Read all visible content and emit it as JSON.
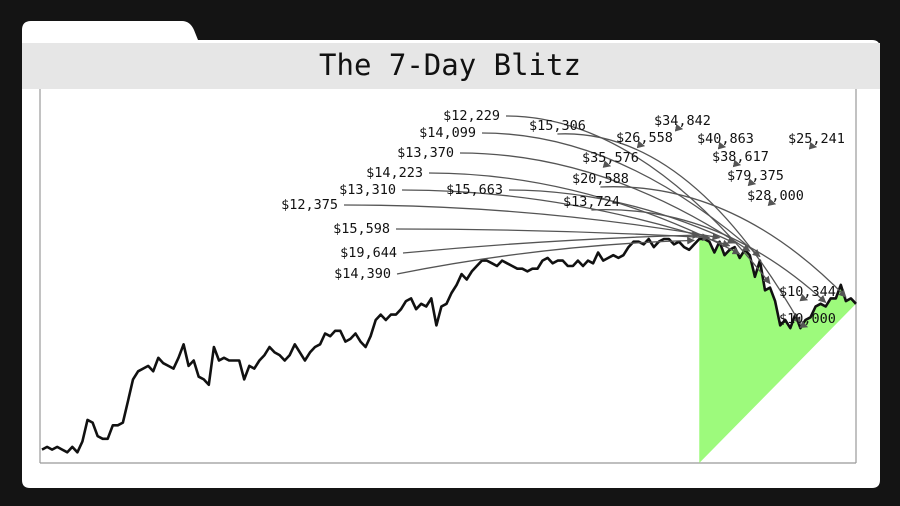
{
  "chart_data": {
    "type": "line",
    "title": "The 7-Day Blitz",
    "xlabel": "",
    "ylabel": "",
    "grid": false,
    "legend": "none",
    "colors": {
      "line": "#111111",
      "highlight": "#9dfa7c",
      "plot_bg": "#ffffff",
      "title_bar": "#e6e6e6",
      "frame": "#141414"
    },
    "ylim": [
      0,
      100
    ],
    "values": [
      2,
      3,
      2,
      3,
      2,
      1,
      3,
      1,
      5,
      13,
      12,
      7,
      6,
      6,
      11,
      11,
      12,
      20,
      28,
      31,
      32,
      33,
      31,
      36,
      34,
      33,
      32,
      36,
      41,
      33,
      35,
      29,
      28,
      26,
      40,
      35,
      36,
      35,
      35,
      35,
      28,
      33,
      32,
      35,
      37,
      40,
      38,
      37,
      35,
      37,
      41,
      38,
      35,
      38,
      40,
      41,
      45,
      44,
      46,
      46,
      42,
      43,
      45,
      42,
      40,
      44,
      50,
      52,
      50,
      52,
      52,
      54,
      57,
      58,
      54,
      56,
      55,
      58,
      48,
      55,
      56,
      60,
      63,
      67,
      65,
      68,
      70,
      72,
      72,
      71,
      70,
      72,
      71,
      70,
      69,
      69,
      68,
      69,
      69,
      72,
      73,
      71,
      72,
      72,
      70,
      70,
      72,
      70,
      72,
      71,
      75,
      72,
      73,
      74,
      73,
      74,
      77,
      79,
      79,
      78,
      80,
      77,
      79,
      80,
      80,
      78,
      79,
      77,
      76,
      78,
      80,
      80,
      79,
      75,
      79,
      74,
      76,
      77,
      73,
      76,
      74,
      66,
      72,
      61,
      62,
      57,
      48,
      50,
      47,
      52,
      47,
      50,
      51,
      55,
      56,
      55,
      58,
      58,
      63,
      57,
      58,
      56
    ],
    "highlight_range": [
      130,
      206
    ],
    "annotations": [
      {
        "label": "$14,390",
        "index": 129
      },
      {
        "label": "$19,644",
        "index": 130
      },
      {
        "label": "$15,598",
        "index": 132
      },
      {
        "label": "$12,375",
        "index": 134
      },
      {
        "label": "$13,310",
        "index": 136
      },
      {
        "label": "$14,223",
        "index": 138
      },
      {
        "label": "$13,370",
        "index": 140
      },
      {
        "label": "$14,099",
        "index": 142
      },
      {
        "label": "$12,229",
        "index": 144
      },
      {
        "label": "$15,663",
        "index": 137
      },
      {
        "label": "$15,306",
        "index": 150
      },
      {
        "label": "$13,724",
        "index": 155
      },
      {
        "label": "$20,588",
        "index": 159
      },
      {
        "label": "$35,576",
        "index": 162
      },
      {
        "label": "$26,558",
        "index": 167
      },
      {
        "label": "$34,842",
        "index": 173
      },
      {
        "label": "$40,863",
        "index": 178
      },
      {
        "label": "$38,617",
        "index": 182
      },
      {
        "label": "$79,375",
        "index": 186
      },
      {
        "label": "$28,000",
        "index": 193
      },
      {
        "label": "$25,241",
        "index": 197
      },
      {
        "label": "$10,344",
        "index": 199
      },
      {
        "label": "$10,000",
        "index": 197
      }
    ]
  }
}
